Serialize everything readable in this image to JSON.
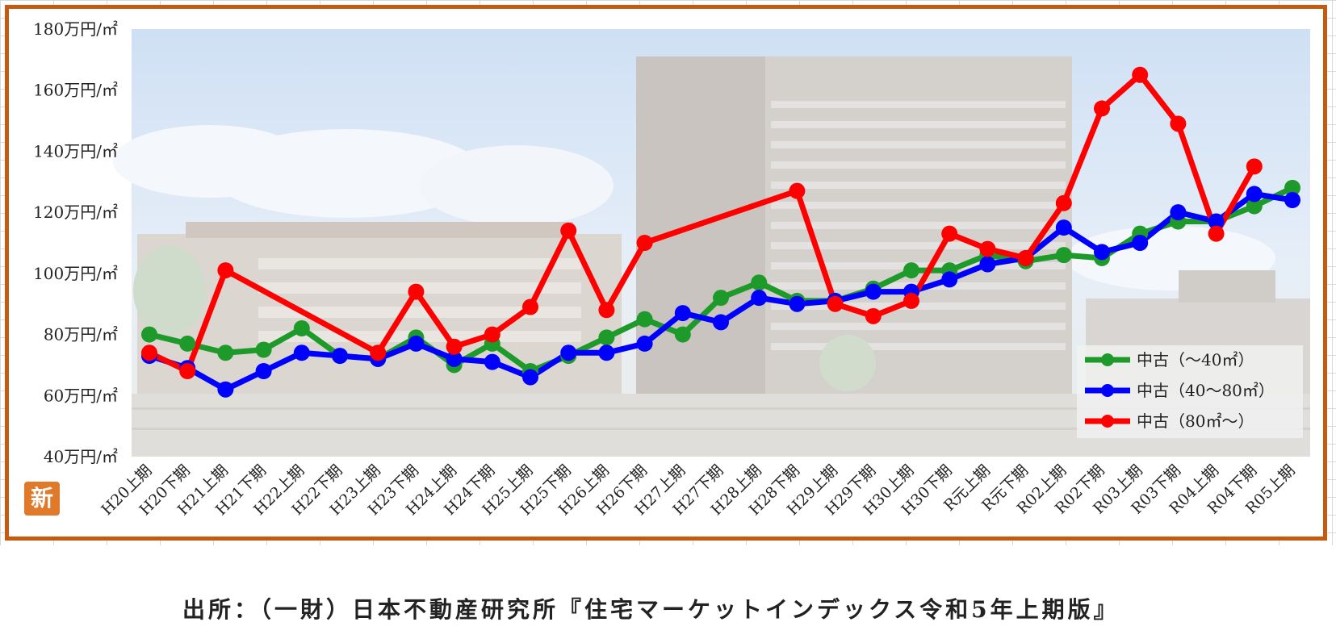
{
  "chart_data": {
    "type": "line",
    "title": "",
    "xlabel": "",
    "ylabel": "",
    "ylim": [
      40,
      180
    ],
    "yticks": [
      {
        "value": 180,
        "label": "180万円/㎡"
      },
      {
        "value": 160,
        "label": "160万円/㎡"
      },
      {
        "value": 140,
        "label": "140万円/㎡"
      },
      {
        "value": 120,
        "label": "120万円/㎡"
      },
      {
        "value": 100,
        "label": "100万円/㎡"
      },
      {
        "value": 80,
        "label": "80万円/㎡"
      },
      {
        "value": 60,
        "label": "60万円/㎡"
      },
      {
        "value": 40,
        "label": "40万円/㎡"
      }
    ],
    "categories": [
      "H20上期",
      "H20下期",
      "H21上期",
      "H21下期",
      "H22上期",
      "H22下期",
      "H23上期",
      "H23下期",
      "H24上期",
      "H24下期",
      "H25上期",
      "H25下期",
      "H26上期",
      "H26下期",
      "H27上期",
      "H27下期",
      "H28上期",
      "H28下期",
      "H29上期",
      "H29下期",
      "H30上期",
      "H30下期",
      "R元上期",
      "R元下期",
      "R02上期",
      "R02下期",
      "R03上期",
      "R03下期",
      "R04上期",
      "R04下期",
      "R05上期"
    ],
    "series": [
      {
        "name": "中古（～40㎡）",
        "color": "#1e9a2a",
        "values": [
          80,
          77,
          74,
          75,
          82,
          73,
          72,
          79,
          70,
          77,
          68,
          73,
          79,
          85,
          80,
          92,
          97,
          91,
          91,
          95,
          101,
          101,
          106,
          104,
          106,
          105,
          113,
          117,
          117,
          122,
          128
        ]
      },
      {
        "name": "中古（40～80㎡）",
        "color": "#0000ff",
        "values": [
          73,
          69,
          62,
          68,
          74,
          73,
          72,
          77,
          72,
          71,
          66,
          74,
          74,
          77,
          87,
          84,
          92,
          90,
          91,
          94,
          94,
          98,
          103,
          105,
          115,
          107,
          110,
          120,
          117,
          126,
          124
        ]
      },
      {
        "name": "中古（80㎡～）",
        "color": "#ff0000",
        "values": [
          74,
          68,
          101,
          null,
          null,
          null,
          74,
          94,
          76,
          80,
          89,
          114,
          88,
          110,
          null,
          null,
          null,
          127,
          90,
          86,
          91,
          113,
          108,
          105,
          123,
          154,
          165,
          149,
          113,
          135,
          null
        ]
      }
    ],
    "legend_position": "bottom-right",
    "grid": false
  },
  "source_text": "出所：（一財）日本不動産研究所『住宅マーケットインデックス令和5年上期版』",
  "badge_text": "新"
}
